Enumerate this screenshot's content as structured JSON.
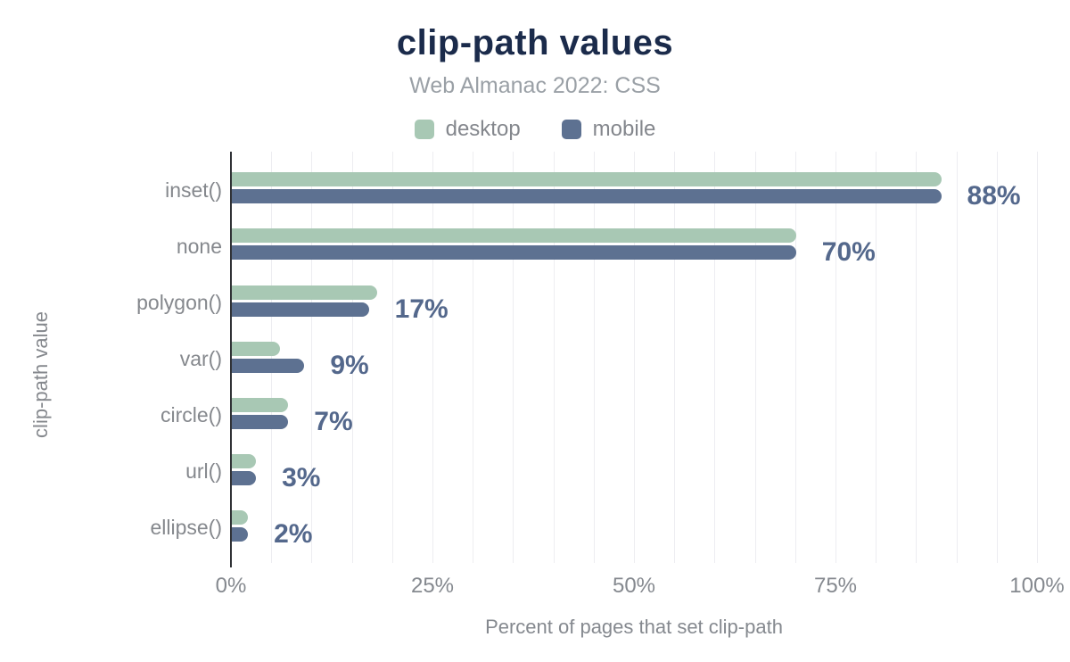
{
  "title": "clip-path values",
  "subtitle": "Web Almanac 2022: CSS",
  "legend": {
    "items": [
      {
        "label": "desktop",
        "color": "#a8c8b4"
      },
      {
        "label": "mobile",
        "color": "#5d7191"
      }
    ]
  },
  "chart_data": {
    "type": "bar",
    "orientation": "horizontal",
    "title": "clip-path values",
    "subtitle": "Web Almanac 2022: CSS",
    "categories": [
      "inset()",
      "none",
      "polygon()",
      "var()",
      "circle()",
      "url()",
      "ellipse()"
    ],
    "series": [
      {
        "name": "desktop",
        "color": "#a8c8b4",
        "values": [
          88,
          70,
          18,
          6,
          7,
          3,
          2
        ]
      },
      {
        "name": "mobile",
        "color": "#5d7191",
        "values": [
          88,
          70,
          17,
          9,
          7,
          3,
          2
        ]
      }
    ],
    "value_labels": [
      "88%",
      "70%",
      "17%",
      "9%",
      "7%",
      "3%",
      "2%"
    ],
    "xlabel": "Percent of pages that set clip-path",
    "ylabel": "clip-path value",
    "xlim": [
      0,
      100
    ],
    "x_ticks": [
      {
        "value": 0,
        "label": "0%"
      },
      {
        "value": 25,
        "label": "25%"
      },
      {
        "value": 50,
        "label": "50%"
      },
      {
        "value": 75,
        "label": "75%"
      },
      {
        "value": 100,
        "label": "100%"
      }
    ],
    "grid": {
      "shown": true,
      "minor_step_percent": 5
    },
    "legend_position": "top"
  },
  "colors": {
    "title": "#1b2b4b",
    "subtitle": "#9aa0a6",
    "value_label": "#54688c",
    "axis_text": "#85898f",
    "gridline": "#ededf1",
    "axis_line": "#303236",
    "desktop": "#a8c8b4",
    "mobile": "#5d7191"
  }
}
